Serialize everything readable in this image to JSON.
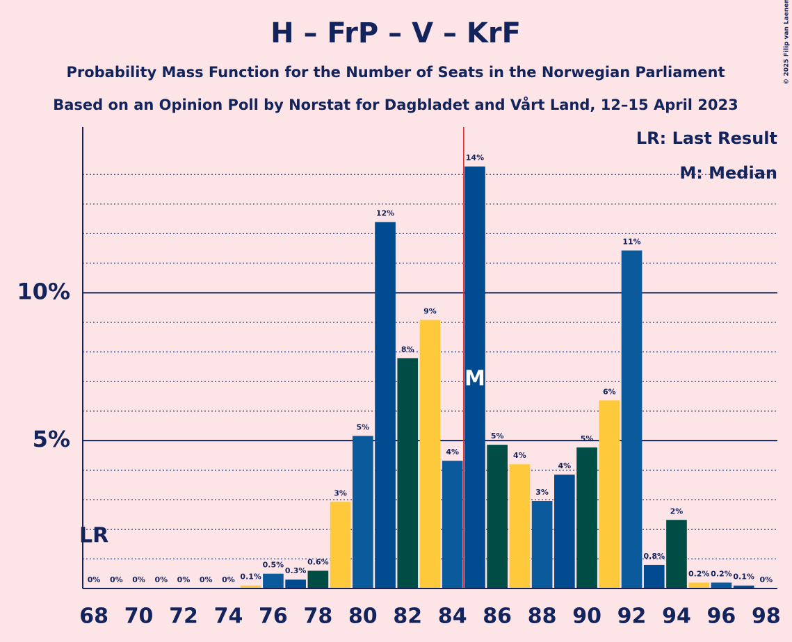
{
  "chart_data": {
    "type": "bar",
    "title": "H – FrP – V – KrF",
    "subtitle": "Probability Mass Function for the Number of Seats in the Norwegian Parliament",
    "subtitle2": "Based on an Opinion Poll by Norstat for Dagbladet and Vårt Land, 12–15 April 2023",
    "credit": "© 2025 Filip van Laenen",
    "x": [
      68,
      69,
      70,
      71,
      72,
      73,
      74,
      75,
      76,
      77,
      78,
      79,
      80,
      81,
      82,
      83,
      84,
      85,
      86,
      87,
      88,
      89,
      90,
      91,
      92,
      93,
      94,
      95,
      96,
      97,
      98
    ],
    "values": [
      0,
      0,
      0,
      0,
      0,
      0,
      0,
      0.1,
      0.5,
      0.3,
      0.6,
      2.93,
      5.16,
      12.39,
      7.79,
      9.08,
      4.32,
      14.27,
      4.86,
      4.2,
      2.96,
      3.85,
      4.77,
      6.36,
      11.43,
      0.8,
      2.32,
      0.2,
      0.2,
      0.1,
      0
    ],
    "value_labels": [
      "0%",
      "0%",
      "0%",
      "0%",
      "0%",
      "0%",
      "0%",
      "0.1%",
      "0.5%",
      "0.3%",
      "0.6%",
      "3%",
      "5%",
      "12%",
      "8%",
      "9%",
      "4%",
      "14%",
      "5%",
      "4%",
      "3%",
      "4%",
      "5%",
      "6%",
      "11%",
      "0.8%",
      "2%",
      "0.2%",
      "0.2%",
      "0.1%",
      "0%"
    ],
    "colors": [
      "#0a5a9c",
      "#004a8f",
      "#004d45",
      "#ffc93c",
      "#0a5a9c",
      "#004a8f",
      "#004d45",
      "#ffc93c",
      "#0a5a9c",
      "#004a8f",
      "#004d45",
      "#ffc93c",
      "#0a5a9c",
      "#004a8f",
      "#004d45",
      "#ffc93c",
      "#0a5a9c",
      "#004a8f",
      "#004d45",
      "#ffc93c",
      "#0a5a9c",
      "#004a8f",
      "#004d45",
      "#ffc93c",
      "#0a5a9c",
      "#004a8f",
      "#004d45",
      "#ffc93c",
      "#0a5a9c",
      "#004a8f",
      "#004d45"
    ],
    "xlim": [
      67.5,
      98.5
    ],
    "xticks": [
      68,
      70,
      72,
      74,
      76,
      78,
      80,
      82,
      84,
      86,
      88,
      90,
      92,
      94,
      96,
      98
    ],
    "ylim": [
      0,
      15.6
    ],
    "yticks": [
      {
        "value": 5,
        "label": "5%"
      },
      {
        "value": 10,
        "label": "10%"
      }
    ],
    "minor_gridlines": [
      1,
      2,
      3,
      4,
      6,
      7,
      8,
      9,
      11,
      12,
      13,
      14
    ],
    "majority": 85,
    "median": 85,
    "median_label": "M",
    "last_result": 68,
    "last_result_label": "LR",
    "legend": [
      "LR: Last Result",
      "M: Median"
    ]
  }
}
